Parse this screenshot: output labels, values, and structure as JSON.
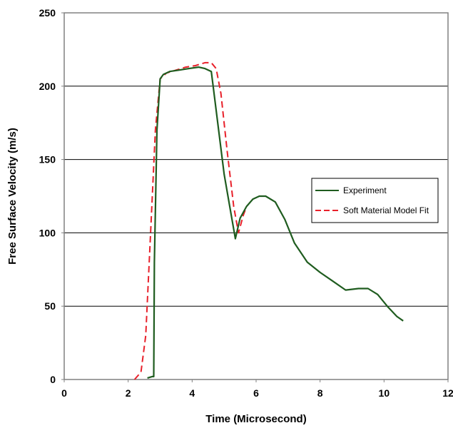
{
  "chart_data": {
    "type": "line",
    "title": "",
    "xlabel": "Time (Microsecond)",
    "ylabel": "Free Surface Velocity  (m/s)",
    "xlim": [
      0,
      12
    ],
    "ylim": [
      0,
      250
    ],
    "x_ticks": [
      "0",
      "2",
      "4",
      "6",
      "8",
      "10",
      "12"
    ],
    "y_ticks": [
      "0",
      "50",
      "100",
      "150",
      "200",
      "250"
    ],
    "grid": "horizontal",
    "legend_position": "right",
    "colors": {
      "experiment": "#1f5c1f",
      "model": "#e8202a",
      "grid": "#000000",
      "frame": "#808080"
    },
    "series": [
      {
        "name": "Experiment",
        "style": "solid",
        "x": [
          2.6,
          2.75,
          2.8,
          2.82,
          2.9,
          3.0,
          3.1,
          3.3,
          3.6,
          3.9,
          4.2,
          4.4,
          4.6,
          4.8,
          5.0,
          5.2,
          5.35,
          5.5,
          5.7,
          5.9,
          6.1,
          6.3,
          6.6,
          6.9,
          7.2,
          7.6,
          8.0,
          8.4,
          8.8,
          9.2,
          9.5,
          9.8,
          10.1,
          10.4,
          10.6
        ],
        "y": [
          1,
          2,
          2,
          80,
          170,
          205,
          208,
          210,
          211,
          212,
          213,
          212,
          210,
          175,
          140,
          115,
          96,
          110,
          118,
          123,
          125,
          125,
          121,
          109,
          93,
          80,
          73,
          67,
          61,
          62,
          62,
          58,
          50,
          43,
          40
        ]
      },
      {
        "name": "Soft Material Model Fit",
        "style": "dashed",
        "x": [
          2.2,
          2.4,
          2.55,
          2.7,
          2.85,
          3.0,
          3.2,
          3.5,
          3.8,
          4.1,
          4.4,
          4.6,
          4.75,
          4.9,
          5.1,
          5.3,
          5.45,
          5.6,
          5.7
        ],
        "y": [
          0,
          5,
          30,
          100,
          170,
          205,
          209,
          211,
          213,
          214,
          216,
          216,
          212,
          195,
          155,
          118,
          100,
          112,
          118
        ]
      }
    ]
  }
}
